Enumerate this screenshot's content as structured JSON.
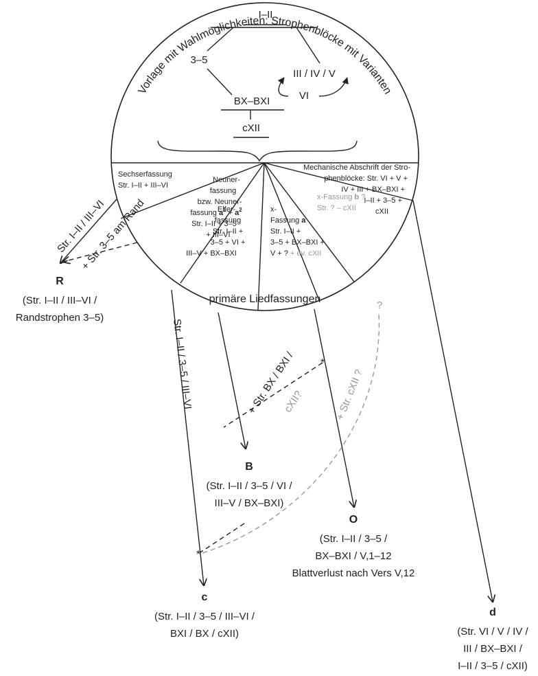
{
  "circle": {
    "arc_title": "Vorlage mit Wahlmöglichkeiten: Strophenblöcke mit Varianten",
    "bottom_title": "primäre Liedfassungen",
    "tree": {
      "top": "I–II",
      "left": "3–5",
      "right": "III / IV / V",
      "vi": "VI",
      "mid": "BX–BXI",
      "bottom": "cXII"
    },
    "sechser": [
      "Sechserfassung",
      "Str. I–II + III–VI"
    ],
    "neuner": {
      "l1": "Neuner-",
      "l2": "fassung",
      "l3": "bzw. Neuner-",
      "l4a": "fassung ",
      "l4b": "a",
      "l4c": "1",
      "l4d": " + ",
      "l4e": "a",
      "l4f": "2",
      "l5": "Str. I–II + 3–5",
      "l6": "+ III–VI"
    },
    "elfer": [
      "Elfer-",
      "fassung",
      "Str. I–II +",
      "3–5 + VI +",
      "III–V + BX–BXI"
    ],
    "xa": {
      "l1": "x-",
      "l2a": "Fassung ",
      "l2b": "a",
      "l3": "Str. I–II +",
      "l4": "3–5 + BX–BXI +",
      "l5a": "V + ? ",
      "l5b": "+ ev. cXII"
    },
    "xb": {
      "l1a": "x-Fassung ",
      "l1b": "b",
      "l1c": " ?",
      "l2": "Str. ? – cXII"
    },
    "mech": [
      "Mechanische Abschrift der Stro-",
      "phenblöcke: Str. VI + V +",
      "IV + III + BX–BXI +",
      "I–II + 3–5 +",
      "cXII"
    ]
  },
  "edges": {
    "r_solid": "Str. I–II / III–VI",
    "r_dashed": "+ Str. 3–5 am Rand",
    "c_solid": "Str. I–II / 3–5 / III–VI",
    "o_dashed_a": "+ Str. BX / BXI /",
    "o_dashed_b": "cXII?",
    "c_grey": "+ Str. cXII ?",
    "q": "?"
  },
  "nodes": [
    {
      "label": "R",
      "lines": [
        "(Str. I–II / III–VI /",
        "Randstrophen 3–5)"
      ]
    },
    {
      "label": "B",
      "lines": [
        "(Str. I–II / 3–5 / VI /",
        "III–V / BX–BXI)"
      ]
    },
    {
      "label": "O",
      "lines": [
        "(Str. I–II / 3–5 /",
        "BX–BXI / V,1–12",
        "Blattverlust nach Vers V,12"
      ]
    },
    {
      "label": "c",
      "lines": [
        "(Str. I–II / 3–5 / III–VI /",
        "BXI / BX / cXII)"
      ]
    },
    {
      "label": "d",
      "lines": [
        "(Str. VI / V / IV /",
        "III / BX–BXI /",
        "I–II / 3–5 / cXII)"
      ]
    }
  ]
}
